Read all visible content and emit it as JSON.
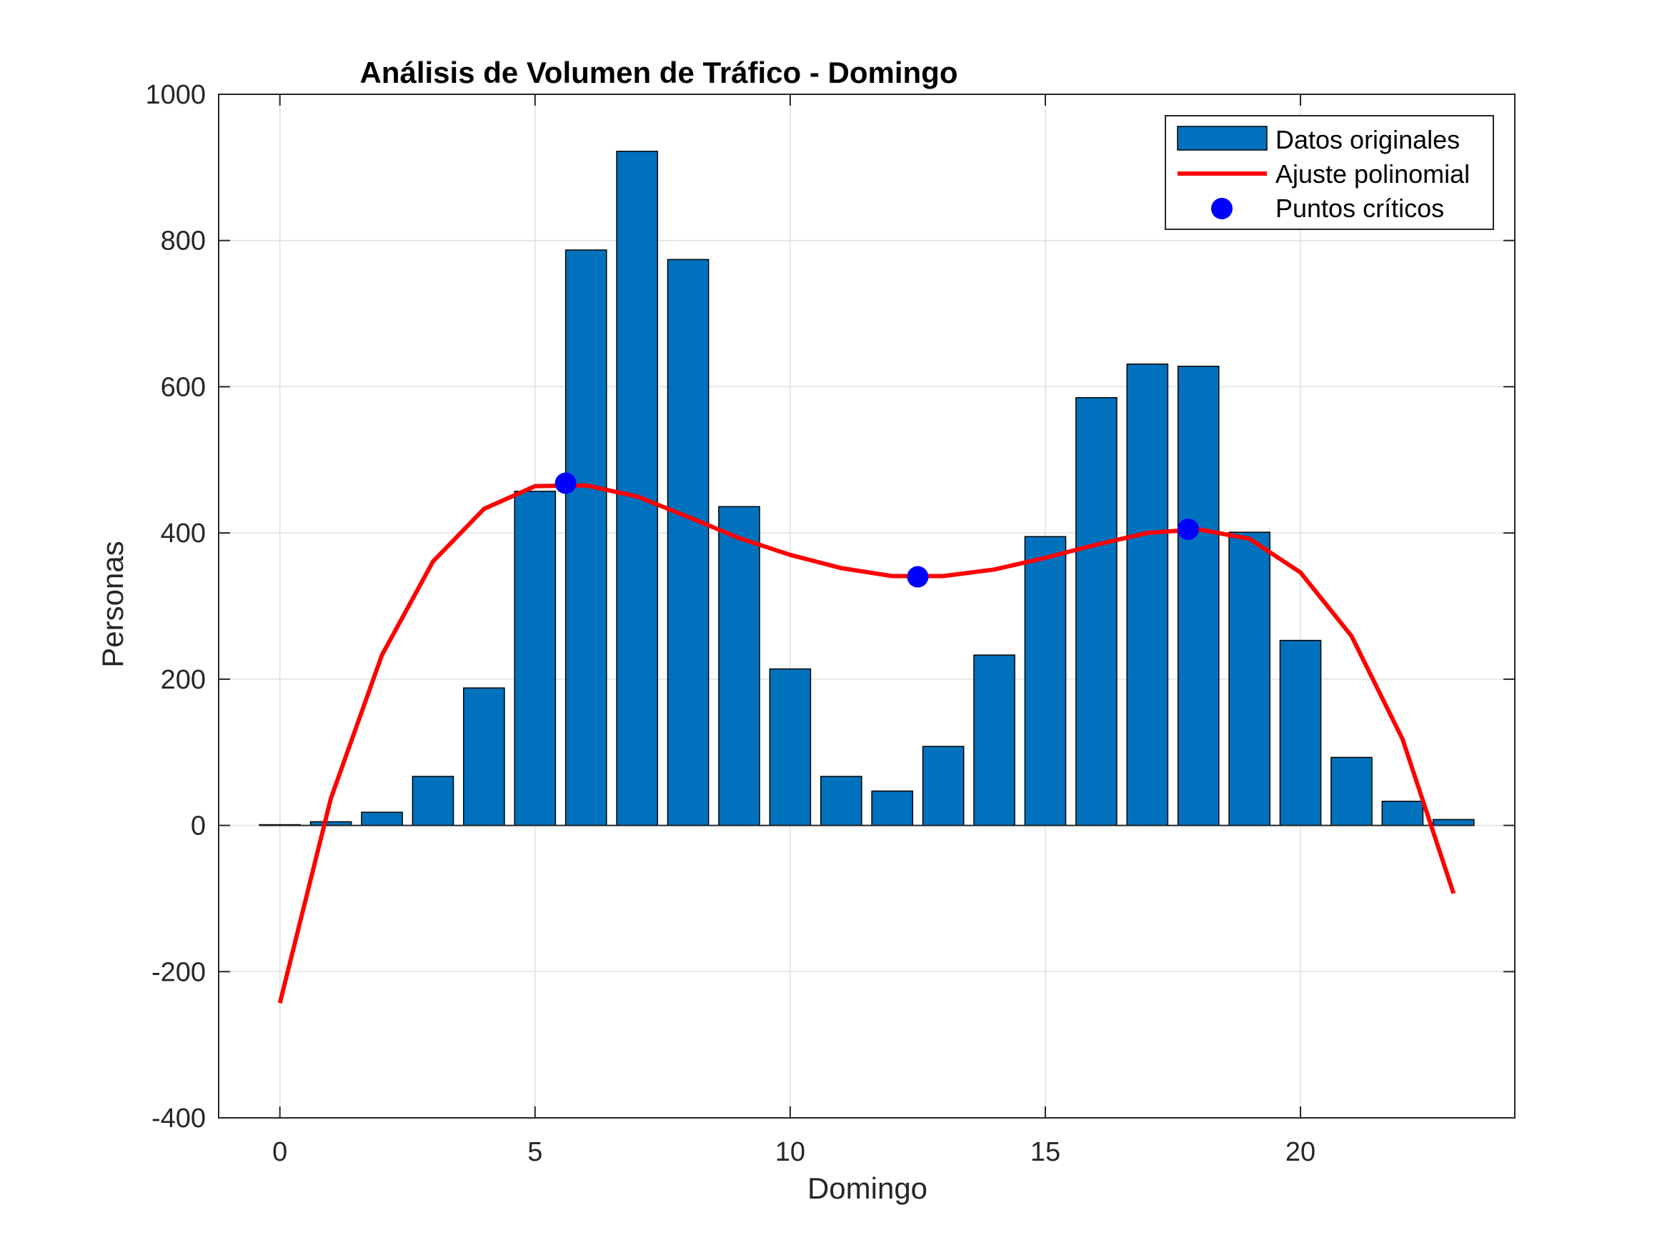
{
  "chart_data": {
    "type": "bar",
    "title": "Análisis de Volumen de Tráfico - Domingo",
    "xlabel": "Domingo",
    "ylabel": "Personas",
    "xlim": [
      -1.2,
      24.2
    ],
    "ylim": [
      -400,
      1000
    ],
    "xticks": [
      "0",
      "5",
      "10",
      "15",
      "20"
    ],
    "xtick_values": [
      0,
      5,
      10,
      15,
      20
    ],
    "yticks": [
      "-400",
      "-200",
      "0",
      "200",
      "400",
      "600",
      "800",
      "1000"
    ],
    "ytick_values": [
      -400,
      -200,
      0,
      200,
      400,
      600,
      800,
      1000
    ],
    "grid": true,
    "legend_position": "top-right",
    "colors": {
      "bars": "#0072BD",
      "fit": "#FF0000",
      "critical": "#0000FF"
    },
    "series": [
      {
        "name": "Datos originales",
        "kind": "bar",
        "x": [
          0,
          1,
          2,
          3,
          4,
          5,
          6,
          7,
          8,
          9,
          10,
          11,
          12,
          13,
          14,
          15,
          16,
          17,
          18,
          19,
          20,
          21,
          22,
          23
        ],
        "values": [
          1,
          5,
          18,
          67,
          188,
          457,
          787,
          922,
          774,
          436,
          214,
          67,
          47,
          108,
          233,
          395,
          585,
          631,
          628,
          401,
          253,
          93,
          33,
          8
        ]
      },
      {
        "name": "Ajuste polinomial",
        "kind": "line",
        "x": [
          0,
          1,
          2,
          3,
          4,
          5,
          6,
          7,
          8,
          9,
          10,
          11,
          12,
          13,
          14,
          15,
          16,
          17,
          18,
          19,
          20,
          21,
          22,
          23
        ],
        "values": [
          -243,
          37,
          233,
          361,
          433,
          464,
          465,
          450,
          422,
          393,
          370,
          352,
          341,
          341,
          350,
          366,
          384,
          400,
          405,
          392,
          346,
          259,
          118,
          -93
        ]
      },
      {
        "name": "Puntos críticos",
        "kind": "scatter",
        "x": [
          5.6,
          12.5,
          17.8
        ],
        "values": [
          468,
          340,
          405
        ]
      }
    ]
  }
}
